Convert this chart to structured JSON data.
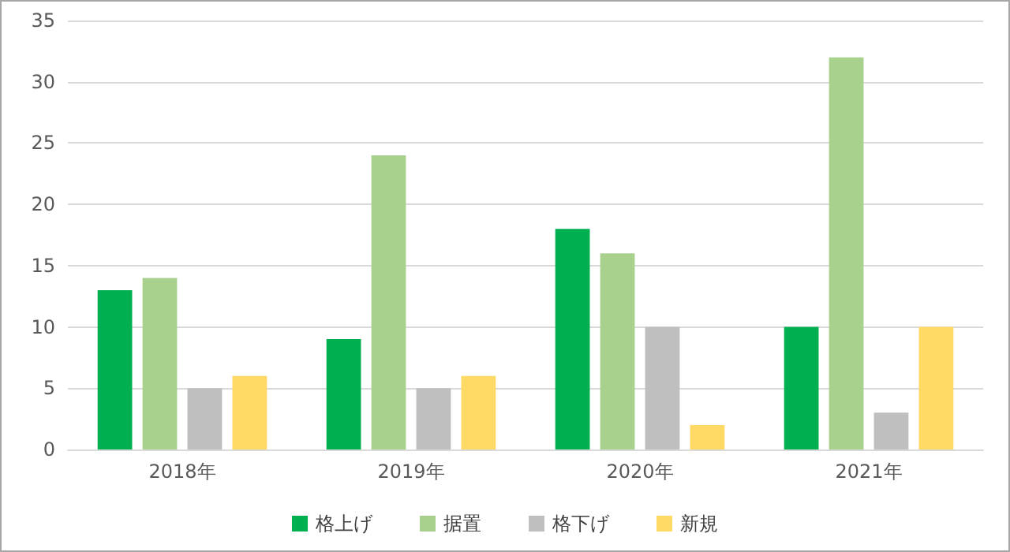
{
  "chart_data": {
    "type": "bar",
    "categories": [
      "2018年",
      "2019年",
      "2020年",
      "2021年"
    ],
    "series": [
      {
        "name": "格上げ",
        "color": "#00b050",
        "values": [
          13,
          9,
          18,
          10
        ]
      },
      {
        "name": "据置",
        "color": "#a9d18e",
        "values": [
          14,
          24,
          16,
          32
        ]
      },
      {
        "name": "格下げ",
        "color": "#bfbfbf",
        "values": [
          5,
          5,
          10,
          3
        ]
      },
      {
        "name": "新規",
        "color": "#ffd966",
        "values": [
          6,
          6,
          2,
          10
        ]
      }
    ],
    "ylim": [
      0,
      35
    ],
    "yticks": [
      0,
      5,
      10,
      15,
      20,
      25,
      30,
      35
    ],
    "grid": "y",
    "legend": "bottom"
  }
}
